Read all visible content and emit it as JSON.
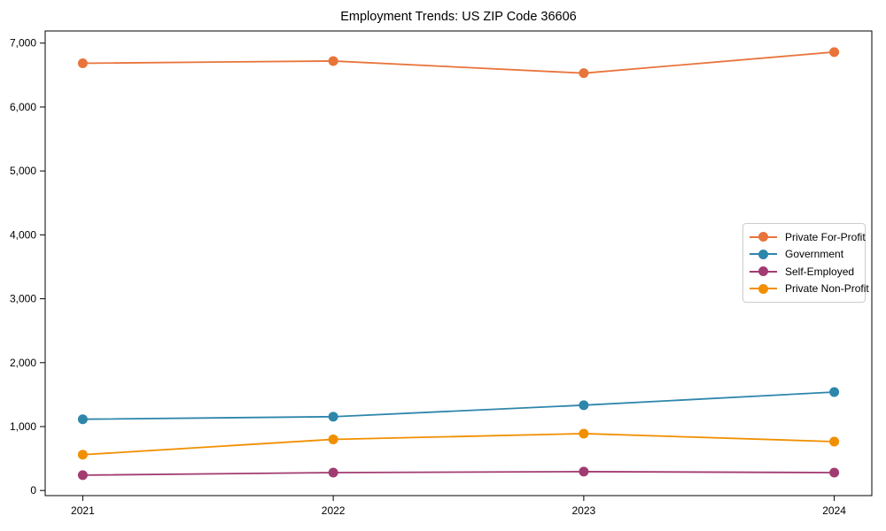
{
  "chart_data": {
    "type": "line",
    "title": "Employment Trends: US ZIP Code 36606",
    "categories": [
      "2021",
      "2022",
      "2023",
      "2024"
    ],
    "series": [
      {
        "name": "Private For-Profit",
        "color": "#E8743B",
        "values": [
          6685,
          6720,
          6530,
          6860
        ]
      },
      {
        "name": "Government",
        "color": "#2E86AB",
        "values": [
          1115,
          1155,
          1335,
          1540
        ]
      },
      {
        "name": "Self-Employed",
        "color": "#A23B72",
        "values": [
          240,
          280,
          295,
          280
        ]
      },
      {
        "name": "Private Non-Profit",
        "color": "#F18F01",
        "values": [
          560,
          800,
          890,
          765
        ]
      }
    ],
    "xlabel": "",
    "ylabel": "",
    "ylim": [
      0,
      7000
    ],
    "yticks": [
      0,
      1000,
      2000,
      3000,
      4000,
      5000,
      6000,
      7000
    ],
    "ytick_labels": [
      "0",
      "1,000",
      "2,000",
      "3,000",
      "4,000",
      "5,000",
      "6,000",
      "7,000"
    ],
    "grid": false,
    "legend_position": "center right",
    "marker": "circle",
    "axis_color": "#000000"
  }
}
